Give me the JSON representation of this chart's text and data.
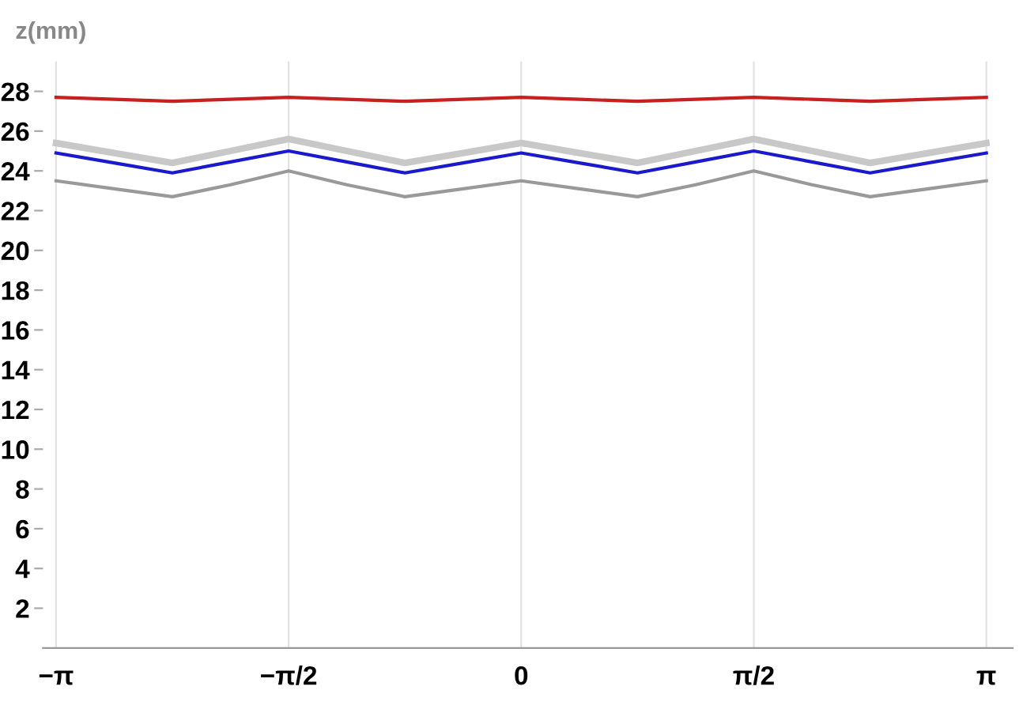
{
  "chart_data": {
    "type": "line",
    "ylabel": "z(mm)",
    "x": [
      -3.1416,
      -2.7489,
      -2.3562,
      -1.9635,
      -1.5708,
      -1.1781,
      -0.7854,
      -0.3927,
      0,
      0.3927,
      0.7854,
      1.1781,
      1.5708,
      1.9635,
      2.3562,
      2.7489,
      3.1416
    ],
    "series": [
      {
        "color": "#c62020",
        "values": [
          27.7,
          27.6,
          27.5,
          27.6,
          27.7,
          27.6,
          27.5,
          27.6,
          27.7,
          27.6,
          27.5,
          27.6,
          27.7,
          27.6,
          27.5,
          27.6,
          27.7
        ]
      },
      {
        "color": "#c8c8c8",
        "values": [
          25.4,
          24.9,
          24.4,
          25.0,
          25.6,
          25.0,
          24.4,
          24.9,
          25.4,
          24.9,
          24.4,
          25.0,
          25.6,
          25.0,
          24.4,
          24.9,
          25.4
        ]
      },
      {
        "color": "#1a1acc",
        "values": [
          24.9,
          24.4,
          23.9,
          24.45,
          25.0,
          24.45,
          23.9,
          24.4,
          24.9,
          24.4,
          23.9,
          24.45,
          25.0,
          24.45,
          23.9,
          24.4,
          24.9
        ]
      },
      {
        "color": "#999999",
        "values": [
          23.5,
          23.1,
          22.7,
          23.3,
          24.0,
          23.3,
          22.7,
          23.1,
          23.5,
          23.1,
          22.7,
          23.3,
          24.0,
          23.3,
          22.7,
          23.1,
          23.5
        ]
      }
    ],
    "xlim": [
      -3.23,
      3.32
    ],
    "ylim": [
      0,
      29.5
    ],
    "xticks": [
      {
        "value": -3.1416,
        "label": "−π"
      },
      {
        "value": -1.5708,
        "label": "−π/2"
      },
      0,
      {
        "value": 1.5708,
        "label": "π/2"
      },
      {
        "value": 3.1416,
        "label": "π"
      }
    ],
    "yticks": [
      2,
      4,
      6,
      8,
      10,
      12,
      14,
      16,
      18,
      20,
      22,
      24,
      26,
      28
    ],
    "grid": "x",
    "line_style": "solid",
    "marker": "none"
  }
}
